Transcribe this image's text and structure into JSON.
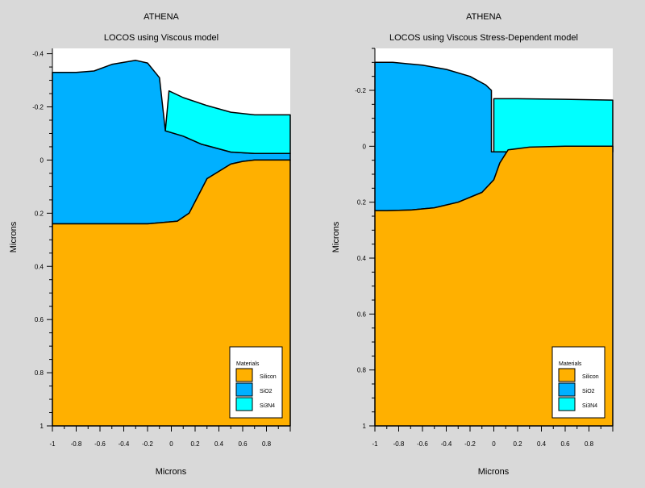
{
  "colors": {
    "silicon": "#ffb000",
    "sio2": "#00b0ff",
    "si3n4": "#00ffff",
    "background": "#d9d9d9",
    "plot_bg": "#ffffff"
  },
  "chart_data": [
    {
      "type": "area",
      "title": "ATHENA",
      "subtitle": "LOCOS using Viscous model",
      "xlabel": "Microns",
      "ylabel": "Microns",
      "xlim": [
        -1,
        1
      ],
      "ylim": [
        -0.42,
        1.0
      ],
      "y_inverted": true,
      "x_ticks": [
        -1,
        -0.8,
        -0.6,
        -0.4,
        -0.2,
        0,
        0.2,
        0.4,
        0.6,
        0.8
      ],
      "x_tick_labels": [
        "-1",
        "-0.8",
        "-0.6",
        "-0.4",
        "-0.2",
        "0",
        "0.2",
        "0.4",
        "0.6",
        "0.8"
      ],
      "y_ticks": [
        -0.4,
        -0.2,
        0,
        0.2,
        0.4,
        0.6,
        0.8,
        1
      ],
      "y_tick_labels": [
        "-0.4",
        "-0.2",
        "0",
        "0.2",
        "0.4",
        "0.6",
        "0.8",
        "1"
      ],
      "legend": {
        "title": "Materials",
        "placement": "bottom-right",
        "items": [
          "Silicon",
          "SiO2",
          "Si3N4"
        ]
      },
      "series": [
        {
          "material": "sio2",
          "points": [
            [
              -1,
              -0.33
            ],
            [
              -0.8,
              -0.33
            ],
            [
              -0.65,
              -0.335
            ],
            [
              -0.5,
              -0.36
            ],
            [
              -0.3,
              -0.375
            ],
            [
              -0.2,
              -0.365
            ],
            [
              -0.1,
              -0.31
            ],
            [
              -0.05,
              -0.11
            ],
            [
              0.1,
              -0.09
            ],
            [
              0.25,
              -0.06
            ],
            [
              0.5,
              -0.03
            ],
            [
              0.7,
              -0.025
            ],
            [
              1,
              -0.025
            ],
            [
              1,
              0
            ],
            [
              0.7,
              0
            ],
            [
              0.6,
              0.005
            ],
            [
              0.5,
              0.015
            ],
            [
              0.3,
              0.07
            ],
            [
              0.15,
              0.2
            ],
            [
              0.05,
              0.23
            ],
            [
              -0.2,
              0.24
            ],
            [
              -1,
              0.24
            ]
          ]
        },
        {
          "material": "si3n4",
          "points": [
            [
              -0.02,
              -0.26
            ],
            [
              0.1,
              -0.235
            ],
            [
              0.3,
              -0.205
            ],
            [
              0.5,
              -0.18
            ],
            [
              0.7,
              -0.17
            ],
            [
              1,
              -0.17
            ],
            [
              1,
              -0.025
            ],
            [
              0.7,
              -0.025
            ],
            [
              0.5,
              -0.03
            ],
            [
              0.25,
              -0.06
            ],
            [
              0.1,
              -0.09
            ],
            [
              -0.05,
              -0.11
            ]
          ]
        },
        {
          "material": "silicon",
          "points": [
            [
              -1,
              0.24
            ],
            [
              -0.2,
              0.24
            ],
            [
              0.05,
              0.23
            ],
            [
              0.15,
              0.2
            ],
            [
              0.3,
              0.07
            ],
            [
              0.5,
              0.015
            ],
            [
              0.6,
              0.005
            ],
            [
              0.7,
              0
            ],
            [
              1,
              0
            ],
            [
              1,
              1
            ],
            [
              -1,
              1
            ]
          ]
        }
      ]
    },
    {
      "type": "area",
      "title": "ATHENA",
      "subtitle": "LOCOS using Viscous Stress-Dependent model",
      "xlabel": "Microns",
      "ylabel": "Microns",
      "xlim": [
        -1,
        1
      ],
      "ylim": [
        -0.35,
        1.0
      ],
      "y_inverted": true,
      "x_ticks": [
        -1,
        -0.8,
        -0.6,
        -0.4,
        -0.2,
        0,
        0.2,
        0.4,
        0.6,
        0.8
      ],
      "x_tick_labels": [
        "-1",
        "-0.8",
        "-0.6",
        "-0.4",
        "-0.2",
        "0",
        "0.2",
        "0.4",
        "0.6",
        "0.8"
      ],
      "y_ticks": [
        -0.2,
        0,
        0.2,
        0.4,
        0.6,
        0.8,
        1
      ],
      "y_tick_labels": [
        "-0.2",
        "0",
        "0.2",
        "0.4",
        "0.6",
        "0.8",
        "1"
      ],
      "legend": {
        "title": "Materials",
        "placement": "bottom-right",
        "items": [
          "Silicon",
          "SiO2",
          "Si3N4"
        ]
      },
      "series": [
        {
          "material": "sio2",
          "points": [
            [
              -1,
              -0.3
            ],
            [
              -0.85,
              -0.3
            ],
            [
              -0.6,
              -0.29
            ],
            [
              -0.4,
              -0.275
            ],
            [
              -0.2,
              -0.25
            ],
            [
              -0.07,
              -0.22
            ],
            [
              -0.02,
              -0.2
            ],
            [
              -0.02,
              0.02
            ],
            [
              0.2,
              0.02
            ],
            [
              1,
              0.02
            ],
            [
              1,
              0
            ],
            [
              0.6,
              0
            ],
            [
              0.3,
              0.003
            ],
            [
              0.12,
              0.013
            ],
            [
              0.05,
              0.06
            ],
            [
              0,
              0.12
            ],
            [
              -0.1,
              0.165
            ],
            [
              -0.3,
              0.2
            ],
            [
              -0.5,
              0.22
            ],
            [
              -0.7,
              0.228
            ],
            [
              -0.9,
              0.23
            ],
            [
              -1,
              0.23
            ]
          ]
        },
        {
          "material": "si3n4",
          "points": [
            [
              0,
              -0.17
            ],
            [
              0.2,
              -0.17
            ],
            [
              0.6,
              -0.168
            ],
            [
              1,
              -0.165
            ],
            [
              1,
              0.02
            ],
            [
              0,
              0.02
            ]
          ]
        },
        {
          "material": "silicon",
          "points": [
            [
              -1,
              0.23
            ],
            [
              -0.9,
              0.23
            ],
            [
              -0.7,
              0.228
            ],
            [
              -0.5,
              0.22
            ],
            [
              -0.3,
              0.2
            ],
            [
              -0.1,
              0.165
            ],
            [
              0,
              0.12
            ],
            [
              0.05,
              0.06
            ],
            [
              0.12,
              0.013
            ],
            [
              0.3,
              0.003
            ],
            [
              0.6,
              0
            ],
            [
              1,
              0
            ],
            [
              1,
              1
            ],
            [
              -1,
              1
            ]
          ]
        }
      ]
    }
  ]
}
